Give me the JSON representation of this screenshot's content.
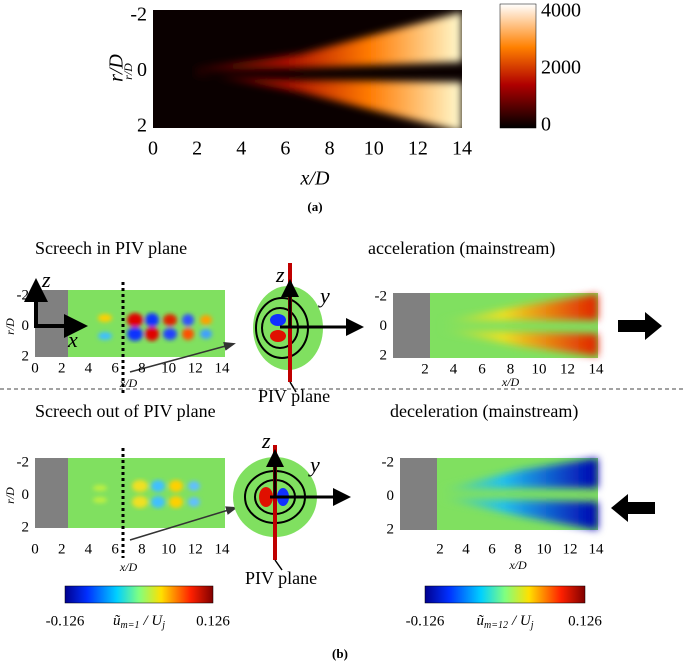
{
  "panel_a": {
    "xlabel": "x/D",
    "ylabel": "r/D",
    "xticks": [
      0,
      2,
      4,
      6,
      8,
      10,
      12,
      14
    ],
    "yticks": [
      -2,
      0,
      2
    ],
    "colorbar_ticks": [
      0,
      2000,
      4000
    ],
    "caption": "(a)"
  },
  "panel_b": {
    "caption": "(b)",
    "piv_label": "PIV plane",
    "axis_letters": {
      "z": "z",
      "y": "y",
      "x": "x"
    },
    "plots": [
      {
        "title": "Screech in PIV plane",
        "xlabel": "x/D",
        "ylabel": "r/D",
        "xticks": [
          0,
          2,
          4,
          6,
          8,
          10,
          12,
          14
        ],
        "yticks": [
          -2,
          0,
          2
        ]
      },
      {
        "title": "acceleration (mainstream)",
        "xlabel": "x/D",
        "xticks": [
          2,
          4,
          6,
          8,
          10,
          12,
          14
        ],
        "yticks": [
          -2,
          0,
          2
        ]
      },
      {
        "title": "Screech out of PIV plane",
        "xlabel": "x/D",
        "ylabel": "r/D",
        "xticks": [
          0,
          2,
          4,
          6,
          8,
          10,
          12,
          14
        ],
        "yticks": [
          -2,
          0,
          2
        ]
      },
      {
        "title": "deceleration (mainstream)",
        "xlabel": "x/D",
        "xticks": [
          2,
          4,
          6,
          8,
          10,
          12,
          14
        ],
        "yticks": [
          -2,
          0,
          2
        ]
      }
    ],
    "colorbars": [
      {
        "ticks": [
          -0.126,
          0.126
        ],
        "label": {
          "symbol": "ũ",
          "sub": "m=1",
          "div": "/ U",
          "div_sub": "j"
        }
      },
      {
        "ticks": [
          -0.126,
          0.126
        ],
        "label": {
          "symbol": "ũ",
          "sub": "m=12",
          "div": "/ U",
          "div_sub": "j"
        }
      }
    ]
  }
}
